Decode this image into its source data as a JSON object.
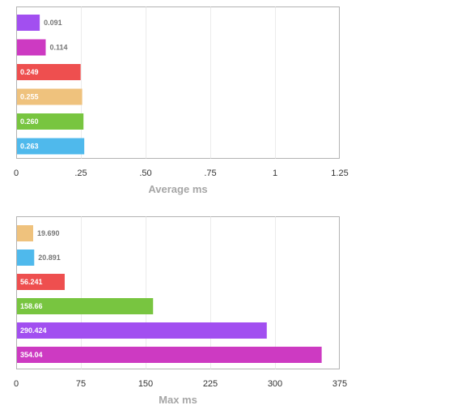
{
  "chart_data": [
    {
      "type": "bar",
      "orientation": "horizontal",
      "title": "",
      "xlabel": "Average ms",
      "ylabel": "",
      "xlim": [
        0,
        1.25
      ],
      "ticks": [
        0,
        0.25,
        0.5,
        0.75,
        1,
        1.25
      ],
      "tick_labels": [
        "0",
        ".25",
        ".50",
        ".75",
        "1",
        "1.25"
      ],
      "grid": true,
      "legend": "none",
      "bars": [
        {
          "value": 0.091,
          "label": "0.091",
          "color": "#a24ff0"
        },
        {
          "value": 0.114,
          "label": "0.114",
          "color": "#cd3ac2"
        },
        {
          "value": 0.249,
          "label": "0.249",
          "color": "#ee4f4f"
        },
        {
          "value": 0.255,
          "label": "0.255",
          "color": "#efc27d"
        },
        {
          "value": 0.26,
          "label": "0.260",
          "color": "#78c540"
        },
        {
          "value": 0.263,
          "label": "0.263",
          "color": "#4fb9ec"
        }
      ]
    },
    {
      "type": "bar",
      "orientation": "horizontal",
      "title": "",
      "xlabel": "Max ms",
      "ylabel": "",
      "xlim": [
        0,
        375
      ],
      "ticks": [
        0,
        75,
        150,
        225,
        300,
        375
      ],
      "tick_labels": [
        "0",
        "75",
        "150",
        "225",
        "300",
        "375"
      ],
      "grid": true,
      "legend": "none",
      "bars": [
        {
          "value": 19.69,
          "label": "19.690",
          "color": "#efc27d"
        },
        {
          "value": 20.891,
          "label": "20.891",
          "color": "#4fb9ec"
        },
        {
          "value": 56.241,
          "label": "56.241",
          "color": "#ee4f4f"
        },
        {
          "value": 158.66,
          "label": "158.66",
          "color": "#78c540"
        },
        {
          "value": 290.424,
          "label": "290.424",
          "color": "#a24ff0"
        },
        {
          "value": 354.04,
          "label": "354.04",
          "color": "#cd3ac2"
        }
      ]
    }
  ]
}
